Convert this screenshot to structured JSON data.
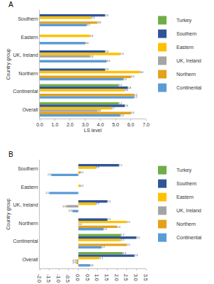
{
  "chart_data": [
    {
      "type": "bar",
      "orientation": "horizontal",
      "title": "A",
      "xlabel": "LS level",
      "ylabel": "Country group",
      "categories": [
        "Southern",
        "Eastern",
        "UK, Ireland",
        "Northern",
        "Continental",
        "Overall"
      ],
      "xlim": [
        0,
        7
      ],
      "xticks": [
        {
          "value": 0,
          "label": "0.0"
        },
        {
          "value": 1,
          "label": "1.0"
        },
        {
          "value": 2,
          "label": "2.0"
        },
        {
          "value": 3,
          "label": "3.0"
        },
        {
          "value": 4,
          "label": "4.0"
        },
        {
          "value": 5,
          "label": "5.0"
        },
        {
          "value": 6,
          "label": "6.0"
        },
        {
          "value": 7,
          "label": "7.0"
        }
      ],
      "grid": false,
      "data_labels": true,
      "legend": "right",
      "series": [
        {
          "name": "Turkey",
          "color": "#70ad47",
          "values": [
            null,
            null,
            null,
            null,
            5.2,
            5.2
          ],
          "value_labels": [
            null,
            null,
            null,
            null,
            "5.2",
            "5.2"
          ]
        },
        {
          "name": "Southern",
          "color": "#2f5597",
          "values": [
            4.3,
            null,
            4.3,
            4.3,
            5.8,
            5.6
          ],
          "value_labels": [
            "4.3",
            null,
            "4.3",
            "4.3",
            "5.8",
            "5.6"
          ]
        },
        {
          "name": "Eastern",
          "color": "#ffc000",
          "values": [
            3.4,
            3.3,
            5.3,
            6.6,
            5.6,
            4.7
          ],
          "value_labels": [
            "3.4",
            "3.3",
            "5.3",
            "6.6",
            "5.6",
            "4.7"
          ]
        },
        {
          "name": "UK, Ireland",
          "color": "#a5a5a5",
          "values": [
            null,
            null,
            3.3,
            null,
            null,
            3.8
          ],
          "value_labels": [
            null,
            null,
            "3.3",
            null,
            null,
            "3.8"
          ]
        },
        {
          "name": "Northern",
          "color": "#e3a21a",
          "values": [
            3.8,
            null,
            null,
            6.0,
            6.2,
            6.0
          ],
          "value_labels": [
            "3.8",
            null,
            null,
            "6.0",
            "6.2",
            "6.0"
          ]
        },
        {
          "name": "Continental",
          "color": "#5b9bd5",
          "values": [
            3.1,
            3.0,
            4.4,
            5.5,
            6.2,
            5.3
          ],
          "value_labels": [
            "3.1",
            "3.0",
            "4.4",
            "5.5",
            "6.2",
            "5.3"
          ]
        }
      ]
    },
    {
      "type": "bar",
      "orientation": "horizontal",
      "title": "B",
      "ylabel": "Country group",
      "categories": [
        "Southern",
        "Eastern",
        "UK, Ireland",
        "Northern",
        "Continental",
        "Overall"
      ],
      "xlim": [
        -2,
        3.5
      ],
      "xticks": [
        {
          "value": -2,
          "label": "-2.0"
        },
        {
          "value": -1.5,
          "label": "-1.5"
        },
        {
          "value": -1,
          "label": "-1.0"
        },
        {
          "value": -0.5,
          "label": "-0.5"
        },
        {
          "value": 0,
          "label": "0.0"
        },
        {
          "value": 0.5,
          "label": "0.5"
        },
        {
          "value": 1,
          "label": "1.0"
        },
        {
          "value": 1.5,
          "label": "1.5"
        },
        {
          "value": 2,
          "label": "2.0"
        },
        {
          "value": 2.5,
          "label": "2.5"
        },
        {
          "value": 3,
          "label": "3.0"
        },
        {
          "value": 3.5,
          "label": "3.5"
        }
      ],
      "grid": false,
      "data_labels": true,
      "legend": "right",
      "series": [
        {
          "name": "Turkey",
          "color": "#70ad47",
          "values": [
            null,
            null,
            null,
            null,
            2.2,
            2.3
          ],
          "value_labels": [
            null,
            null,
            null,
            null,
            "2.2",
            "2.3"
          ]
        },
        {
          "name": "Southern",
          "color": "#2f5597",
          "values": [
            2.1,
            null,
            1.5,
            1.5,
            3.0,
            2.9
          ],
          "value_labels": [
            "2.1",
            null,
            "1.5",
            "1.5",
            "3.0",
            "2.9"
          ]
        },
        {
          "name": "Eastern",
          "color": "#ffc000",
          "values": [
            0.9,
            0.1,
            0.9,
            2.5,
            2.2,
            1.1
          ],
          "value_labels": [
            "0.9",
            "0.1",
            "0.9",
            "2.5",
            "2.2",
            "1.1"
          ]
        },
        {
          "name": "UK, Ireland",
          "color": "#a5a5a5",
          "values": [
            null,
            null,
            -0.6,
            0.0,
            null,
            -0.1
          ],
          "value_labels": [
            null,
            null,
            "-0.6",
            "0.0",
            null,
            "-0.1"
          ]
        },
        {
          "name": "Northern",
          "color": "#e3a21a",
          "values": [
            0.1,
            null,
            null,
            2.0,
            2.5,
            -0.1
          ],
          "value_labels": [
            "0.1",
            null,
            null,
            "2.0",
            "2.5",
            "-0.1"
          ]
        },
        {
          "name": "Continental",
          "color": "#5b9bd5",
          "values": [
            -1.4,
            -1.5,
            -0.3,
            1.3,
            1.2,
            0.6
          ],
          "value_labels": [
            "-1.4",
            "-1.5",
            "-0.3",
            "1.3",
            "1.2",
            "0.6"
          ]
        }
      ]
    }
  ]
}
